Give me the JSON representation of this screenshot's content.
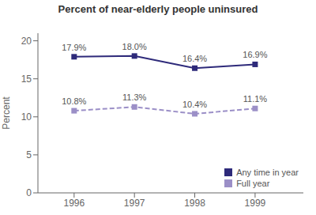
{
  "chart_data": {
    "type": "line",
    "title": "Percent of near-elderly people uninsured",
    "y_label": "Percent",
    "x": [
      1996,
      1997,
      1998,
      1999
    ],
    "series": [
      {
        "name": "Any time in year",
        "color": "#2e2a7a",
        "values": [
          17.9,
          18.0,
          16.4,
          16.9
        ],
        "value_labels": [
          "17.9%",
          "18.0%",
          "16.4%",
          "16.9%"
        ],
        "marker": "square",
        "line_style": "solid"
      },
      {
        "name": "Full year",
        "color": "#9b8fc7",
        "values": [
          10.8,
          11.3,
          10.4,
          11.1
        ],
        "value_labels": [
          "10.8%",
          "11.3%",
          "10.4%",
          "11.1%"
        ],
        "marker": "square",
        "line_style": "dashed"
      }
    ],
    "xlim": [
      1995.4,
      1999.8
    ],
    "xticks": [
      1996,
      1997,
      1998,
      1999
    ],
    "ylim": [
      0,
      21
    ],
    "yticks": [
      0,
      5,
      10,
      15,
      20
    ],
    "grid": false,
    "legend": "lower right",
    "data_labels": true
  }
}
